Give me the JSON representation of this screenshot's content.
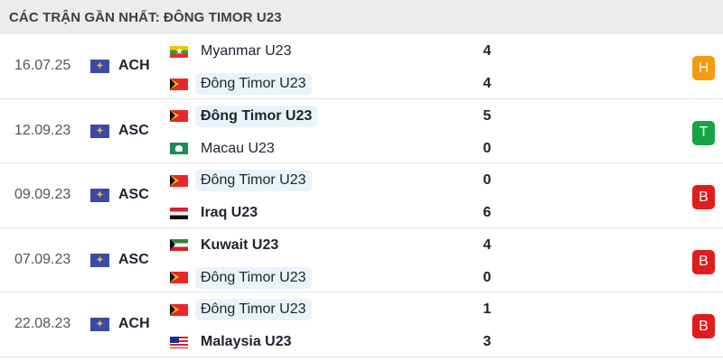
{
  "title": "CÁC TRẬN GẦN NHẤT: ĐÔNG TIMOR U23",
  "colors": {
    "H": "#f59a0f",
    "T": "#17a34a",
    "B": "#e01c1c",
    "highlight": "#eaf3fc"
  },
  "matches": [
    {
      "date": "16.07.25",
      "competition": "ACH",
      "home": {
        "name": "Myanmar U23",
        "flag": "myanmar",
        "score": "4",
        "winner": false,
        "highlight": false
      },
      "away": {
        "name": "Đông Timor U23",
        "flag": "timor",
        "score": "4",
        "winner": false,
        "highlight": true
      },
      "result": "H"
    },
    {
      "date": "12.09.23",
      "competition": "ASC",
      "home": {
        "name": "Đông Timor U23",
        "flag": "timor",
        "score": "5",
        "winner": true,
        "highlight": true
      },
      "away": {
        "name": "Macau U23",
        "flag": "macau",
        "score": "0",
        "winner": false,
        "highlight": false
      },
      "result": "T"
    },
    {
      "date": "09.09.23",
      "competition": "ASC",
      "home": {
        "name": "Đông Timor U23",
        "flag": "timor",
        "score": "0",
        "winner": false,
        "highlight": true
      },
      "away": {
        "name": "Iraq U23",
        "flag": "iraq",
        "score": "6",
        "winner": true,
        "highlight": false
      },
      "result": "B"
    },
    {
      "date": "07.09.23",
      "competition": "ASC",
      "home": {
        "name": "Kuwait U23",
        "flag": "kuwait",
        "score": "4",
        "winner": true,
        "highlight": false
      },
      "away": {
        "name": "Đông Timor U23",
        "flag": "timor",
        "score": "0",
        "winner": false,
        "highlight": true
      },
      "result": "B"
    },
    {
      "date": "22.08.23",
      "competition": "ACH",
      "home": {
        "name": "Đông Timor U23",
        "flag": "timor",
        "score": "1",
        "winner": false,
        "highlight": true
      },
      "away": {
        "name": "Malaysia U23",
        "flag": "malaysia",
        "score": "3",
        "winner": true,
        "highlight": false
      },
      "result": "B"
    }
  ]
}
